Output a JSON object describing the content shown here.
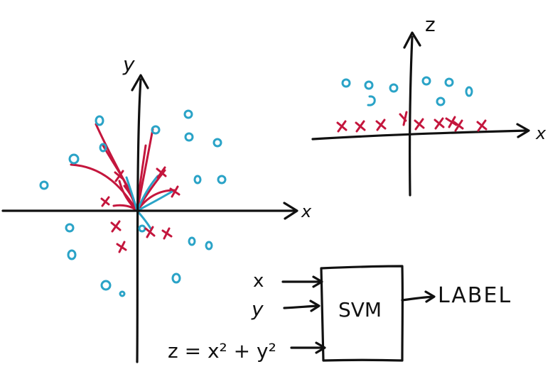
{
  "colors": {
    "ink": "#111111",
    "circle_class": "#2aa3c7",
    "cross_class": "#c4163d"
  },
  "left_plot": {
    "x_axis_label": "x",
    "y_axis_label": "y"
  },
  "right_plot": {
    "x_axis_label": "x",
    "z_axis_label": "z"
  },
  "svm_diagram": {
    "inputs": [
      "x",
      "y",
      "z = x² + y²"
    ],
    "box_label": "SVM",
    "output_label": "LABEL"
  }
}
